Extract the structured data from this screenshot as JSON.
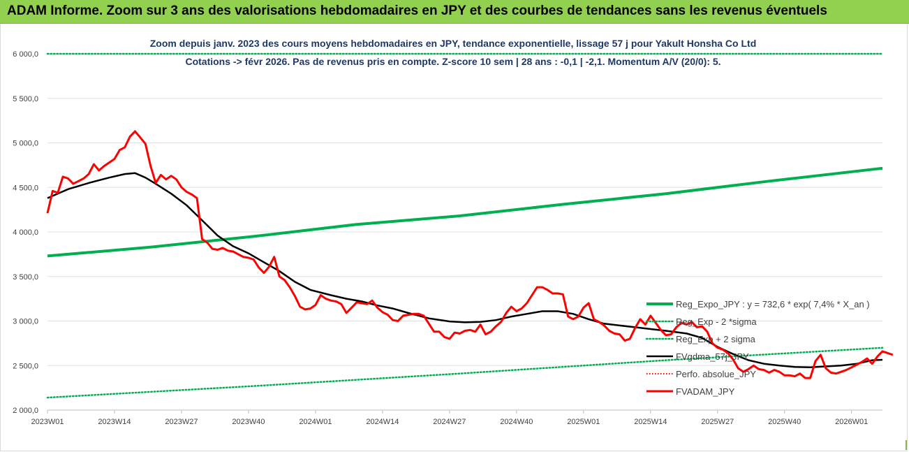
{
  "header": {
    "title": "ADAM Informe. Zoom sur 3 ans des valorisations hebdomadaires en JPY et des courbes de tendances sans les revenus éventuels"
  },
  "colors": {
    "header_bg": "#92d050",
    "reg_expo": "#00b050",
    "sigma": "#00b050",
    "fvgdma": "#000000",
    "perfo": "#ff0000",
    "fvadam": "#ff0000"
  },
  "chart_data": {
    "type": "line",
    "title_line1": "Zoom depuis janv. 2023 des cours moyens hebdomadaires en JPY, tendance exponentielle, lissage 57 j pour Yakult Honsha Co Ltd",
    "title_line2": "Cotations -> févr 2026.  Pas de revenus pris en compte. Z-score 10 sem | 28 ans : -0,1 | -2,1. Momentum A/V (20/0): 5.",
    "y_ticks": [
      "2 000,0",
      "2 500,0",
      "3 000,0",
      "3 500,0",
      "4 000,0",
      "4 500,0",
      "5 000,0",
      "5 500,0",
      "6 000,0"
    ],
    "ylim": [
      2000,
      6000
    ],
    "x_range": [
      0,
      162
    ],
    "x_ticks": [
      {
        "label": "2023W01",
        "x": 0
      },
      {
        "label": "2023W14",
        "x": 13
      },
      {
        "label": "2023W27",
        "x": 26
      },
      {
        "label": "2023W40",
        "x": 39
      },
      {
        "label": "2024W01",
        "x": 52
      },
      {
        "label": "2024W14",
        "x": 65
      },
      {
        "label": "2024W27",
        "x": 78
      },
      {
        "label": "2024W40",
        "x": 91
      },
      {
        "label": "2025W01",
        "x": 104
      },
      {
        "label": "2025W14",
        "x": 117
      },
      {
        "label": "2025W27",
        "x": 130
      },
      {
        "label": "2025W40",
        "x": 143
      },
      {
        "label": "2026W01",
        "x": 156
      }
    ],
    "legend": [
      {
        "key": "reg_expo",
        "label": "Reg_Expo_JPY : y = 732,6 * exp( 7,4% *  X_an )"
      },
      {
        "key": "minus2",
        "label": "Reg_Exp - 2 *sigma"
      },
      {
        "key": "plus2",
        "label": "Reg_Exp + 2 sigma"
      },
      {
        "key": "fvgdma",
        "label": "FVgdma_57j_JPY"
      },
      {
        "key": "perfo",
        "label": "Perfo. absolue_JPY"
      },
      {
        "key": "fvadam",
        "label": "FVADAM_JPY"
      }
    ],
    "series": {
      "reg_expo": {
        "name": "Reg_Expo_JPY",
        "points": [
          [
            0,
            3730
          ],
          [
            20,
            3830
          ],
          [
            40,
            3950
          ],
          [
            60,
            4085
          ],
          [
            80,
            4180
          ],
          [
            100,
            4310
          ],
          [
            120,
            4430
          ],
          [
            140,
            4570
          ],
          [
            162,
            4715
          ]
        ]
      },
      "plus2": {
        "name": "Reg_Exp + 2 sigma",
        "points": [
          [
            0,
            6000
          ],
          [
            162,
            6000
          ]
        ]
      },
      "minus2": {
        "name": "Reg_Exp - 2 *sigma",
        "points": [
          [
            0,
            2140
          ],
          [
            40,
            2270
          ],
          [
            80,
            2410
          ],
          [
            120,
            2560
          ],
          [
            162,
            2700
          ]
        ]
      },
      "fvgdma": {
        "name": "FVgdma_57j_JPY",
        "points": [
          [
            0,
            4380
          ],
          [
            4,
            4480
          ],
          [
            8,
            4550
          ],
          [
            12,
            4610
          ],
          [
            15,
            4650
          ],
          [
            17,
            4660
          ],
          [
            19,
            4610
          ],
          [
            21,
            4540
          ],
          [
            24,
            4430
          ],
          [
            27,
            4300
          ],
          [
            30,
            4130
          ],
          [
            33,
            3960
          ],
          [
            36,
            3840
          ],
          [
            39,
            3760
          ],
          [
            42,
            3660
          ],
          [
            45,
            3560
          ],
          [
            48,
            3440
          ],
          [
            51,
            3350
          ],
          [
            55,
            3290
          ],
          [
            58,
            3250
          ],
          [
            61,
            3220
          ],
          [
            64,
            3175
          ],
          [
            67,
            3140
          ],
          [
            70,
            3090
          ],
          [
            74,
            3030
          ],
          [
            78,
            2995
          ],
          [
            81,
            2985
          ],
          [
            84,
            2990
          ],
          [
            87,
            3010
          ],
          [
            90,
            3050
          ],
          [
            93,
            3080
          ],
          [
            96,
            3110
          ],
          [
            99,
            3110
          ],
          [
            102,
            3080
          ],
          [
            105,
            3020
          ],
          [
            108,
            2970
          ],
          [
            111,
            2950
          ],
          [
            114,
            2930
          ],
          [
            117,
            2910
          ],
          [
            120,
            2890
          ],
          [
            124,
            2860
          ],
          [
            127,
            2810
          ],
          [
            130,
            2710
          ],
          [
            133,
            2630
          ],
          [
            136,
            2560
          ],
          [
            139,
            2520
          ],
          [
            142,
            2500
          ],
          [
            145,
            2485
          ],
          [
            148,
            2480
          ],
          [
            151,
            2490
          ],
          [
            154,
            2500
          ],
          [
            157,
            2520
          ],
          [
            160,
            2560
          ],
          [
            162,
            2565
          ]
        ]
      },
      "fvadam": {
        "name": "FVADAM_JPY",
        "points": [
          [
            0,
            4210
          ],
          [
            1,
            4460
          ],
          [
            2,
            4440
          ],
          [
            3,
            4620
          ],
          [
            4,
            4600
          ],
          [
            5,
            4540
          ],
          [
            6,
            4570
          ],
          [
            7,
            4600
          ],
          [
            8,
            4650
          ],
          [
            9,
            4760
          ],
          [
            10,
            4690
          ],
          [
            11,
            4740
          ],
          [
            12,
            4780
          ],
          [
            13,
            4820
          ],
          [
            14,
            4920
          ],
          [
            15,
            4950
          ],
          [
            16,
            5070
          ],
          [
            17,
            5130
          ],
          [
            18,
            5060
          ],
          [
            19,
            4990
          ],
          [
            20,
            4740
          ],
          [
            21,
            4550
          ],
          [
            22,
            4640
          ],
          [
            23,
            4590
          ],
          [
            24,
            4630
          ],
          [
            25,
            4590
          ],
          [
            26,
            4500
          ],
          [
            27,
            4450
          ],
          [
            28,
            4420
          ],
          [
            29,
            4380
          ],
          [
            30,
            3920
          ],
          [
            31,
            3880
          ],
          [
            32,
            3810
          ],
          [
            33,
            3800
          ],
          [
            34,
            3820
          ],
          [
            35,
            3790
          ],
          [
            36,
            3780
          ],
          [
            37,
            3750
          ],
          [
            38,
            3720
          ],
          [
            39,
            3710
          ],
          [
            40,
            3690
          ],
          [
            41,
            3600
          ],
          [
            42,
            3540
          ],
          [
            43,
            3610
          ],
          [
            44,
            3720
          ],
          [
            45,
            3500
          ],
          [
            46,
            3460
          ],
          [
            47,
            3380
          ],
          [
            48,
            3280
          ],
          [
            49,
            3160
          ],
          [
            50,
            3130
          ],
          [
            51,
            3140
          ],
          [
            52,
            3180
          ],
          [
            53,
            3290
          ],
          [
            54,
            3250
          ],
          [
            55,
            3230
          ],
          [
            56,
            3220
          ],
          [
            57,
            3190
          ],
          [
            58,
            3090
          ],
          [
            59,
            3150
          ],
          [
            60,
            3210
          ],
          [
            61,
            3200
          ],
          [
            62,
            3190
          ],
          [
            63,
            3230
          ],
          [
            64,
            3150
          ],
          [
            65,
            3100
          ],
          [
            66,
            3070
          ],
          [
            67,
            3010
          ],
          [
            68,
            3000
          ],
          [
            69,
            3060
          ],
          [
            70,
            3070
          ],
          [
            71,
            3080
          ],
          [
            72,
            3080
          ],
          [
            73,
            3060
          ],
          [
            74,
            2970
          ],
          [
            75,
            2880
          ],
          [
            76,
            2880
          ],
          [
            77,
            2820
          ],
          [
            78,
            2800
          ],
          [
            79,
            2870
          ],
          [
            80,
            2860
          ],
          [
            81,
            2890
          ],
          [
            82,
            2900
          ],
          [
            83,
            2880
          ],
          [
            84,
            2960
          ],
          [
            85,
            2850
          ],
          [
            86,
            2880
          ],
          [
            87,
            2940
          ],
          [
            88,
            2990
          ],
          [
            89,
            3090
          ],
          [
            90,
            3160
          ],
          [
            91,
            3110
          ],
          [
            92,
            3140
          ],
          [
            93,
            3200
          ],
          [
            94,
            3290
          ],
          [
            95,
            3380
          ],
          [
            96,
            3380
          ],
          [
            97,
            3350
          ],
          [
            98,
            3310
          ],
          [
            99,
            3310
          ],
          [
            100,
            3300
          ],
          [
            101,
            3050
          ],
          [
            102,
            3020
          ],
          [
            103,
            3050
          ],
          [
            104,
            3150
          ],
          [
            105,
            3200
          ],
          [
            106,
            3020
          ],
          [
            107,
            2990
          ],
          [
            108,
            2950
          ],
          [
            109,
            2890
          ],
          [
            110,
            2860
          ],
          [
            111,
            2850
          ],
          [
            112,
            2780
          ],
          [
            113,
            2800
          ],
          [
            114,
            2920
          ],
          [
            115,
            3020
          ],
          [
            116,
            2960
          ],
          [
            117,
            3060
          ],
          [
            118,
            2980
          ],
          [
            119,
            2900
          ],
          [
            120,
            2840
          ],
          [
            121,
            2850
          ],
          [
            122,
            2930
          ],
          [
            123,
            2980
          ],
          [
            124,
            2960
          ],
          [
            125,
            2990
          ],
          [
            126,
            2930
          ],
          [
            127,
            2940
          ],
          [
            128,
            2880
          ],
          [
            129,
            2750
          ],
          [
            130,
            2700
          ],
          [
            131,
            2680
          ],
          [
            132,
            2640
          ],
          [
            133,
            2570
          ],
          [
            134,
            2470
          ],
          [
            135,
            2430
          ],
          [
            136,
            2460
          ],
          [
            137,
            2500
          ],
          [
            138,
            2460
          ],
          [
            139,
            2450
          ],
          [
            140,
            2420
          ],
          [
            141,
            2450
          ],
          [
            142,
            2430
          ],
          [
            143,
            2390
          ],
          [
            144,
            2390
          ],
          [
            145,
            2380
          ],
          [
            146,
            2410
          ],
          [
            147,
            2360
          ],
          [
            148,
            2360
          ],
          [
            149,
            2550
          ],
          [
            150,
            2620
          ],
          [
            151,
            2470
          ],
          [
            152,
            2420
          ],
          [
            153,
            2410
          ],
          [
            154,
            2430
          ],
          [
            155,
            2450
          ],
          [
            156,
            2480
          ],
          [
            157,
            2510
          ],
          [
            158,
            2540
          ],
          [
            159,
            2580
          ],
          [
            160,
            2520
          ],
          [
            161,
            2600
          ],
          [
            162,
            2660
          ],
          [
            163,
            2640
          ],
          [
            164,
            2620
          ]
        ]
      }
    }
  }
}
